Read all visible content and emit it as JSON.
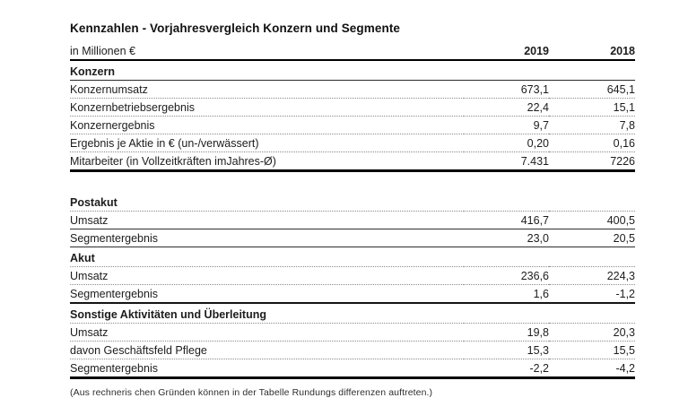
{
  "page": {
    "title": "Kennzahlen - Vorjahresvergleich Konzern und Segmente",
    "footnote": "(Aus rechneris chen Gründen können in der Tabelle Rundungs differenzen auftreten.)"
  },
  "table": {
    "unit_label": "in Millionen €",
    "columns": [
      "2019",
      "2018"
    ],
    "sections": [
      {
        "name": "Konzern",
        "rows": [
          {
            "label": "Konzernumsatz",
            "values": [
              "673,1",
              "645,1"
            ]
          },
          {
            "label": "Konzernbetriebsergebnis",
            "values": [
              "22,4",
              "15,1"
            ]
          },
          {
            "label": "Konzernergebnis",
            "values": [
              "9,7",
              "7,8"
            ]
          },
          {
            "label": "Ergebnis je Aktie in € (un-/verwässert)",
            "values": [
              "0,20",
              "0,16"
            ]
          },
          {
            "label": "Mitarbeiter (in Vollzeitkräften imJahres-Ø)",
            "values": [
              "7.431",
              "7226"
            ]
          }
        ]
      },
      {
        "name": "Postakut",
        "rows": [
          {
            "label": "Umsatz",
            "values": [
              "416,7",
              "400,5"
            ]
          },
          {
            "label": "Segmentergebnis",
            "values": [
              "23,0",
              "20,5"
            ]
          }
        ]
      },
      {
        "name": "Akut",
        "rows": [
          {
            "label": "Umsatz",
            "values": [
              "236,6",
              "224,3"
            ]
          },
          {
            "label": "Segmentergebnis",
            "values": [
              "1,6",
              "-1,2"
            ]
          }
        ]
      },
      {
        "name": "Sonstige Aktivitäten und Überleitung",
        "rows": [
          {
            "label": "Umsatz",
            "values": [
              "19,8",
              "20,3"
            ]
          },
          {
            "label": "davon Geschäftsfeld Pflege",
            "values": [
              "15,3",
              "15,5"
            ]
          },
          {
            "label": "Segmentergebnis",
            "values": [
              "-2,2",
              "-4,2"
            ]
          }
        ]
      }
    ]
  },
  "colors": {
    "background": "#ffffff",
    "text": "#1c1c1c",
    "rule_heavy": "#000000",
    "rule_solid": "#2f2f2f",
    "rule_dotted": "#8a8a8a"
  }
}
